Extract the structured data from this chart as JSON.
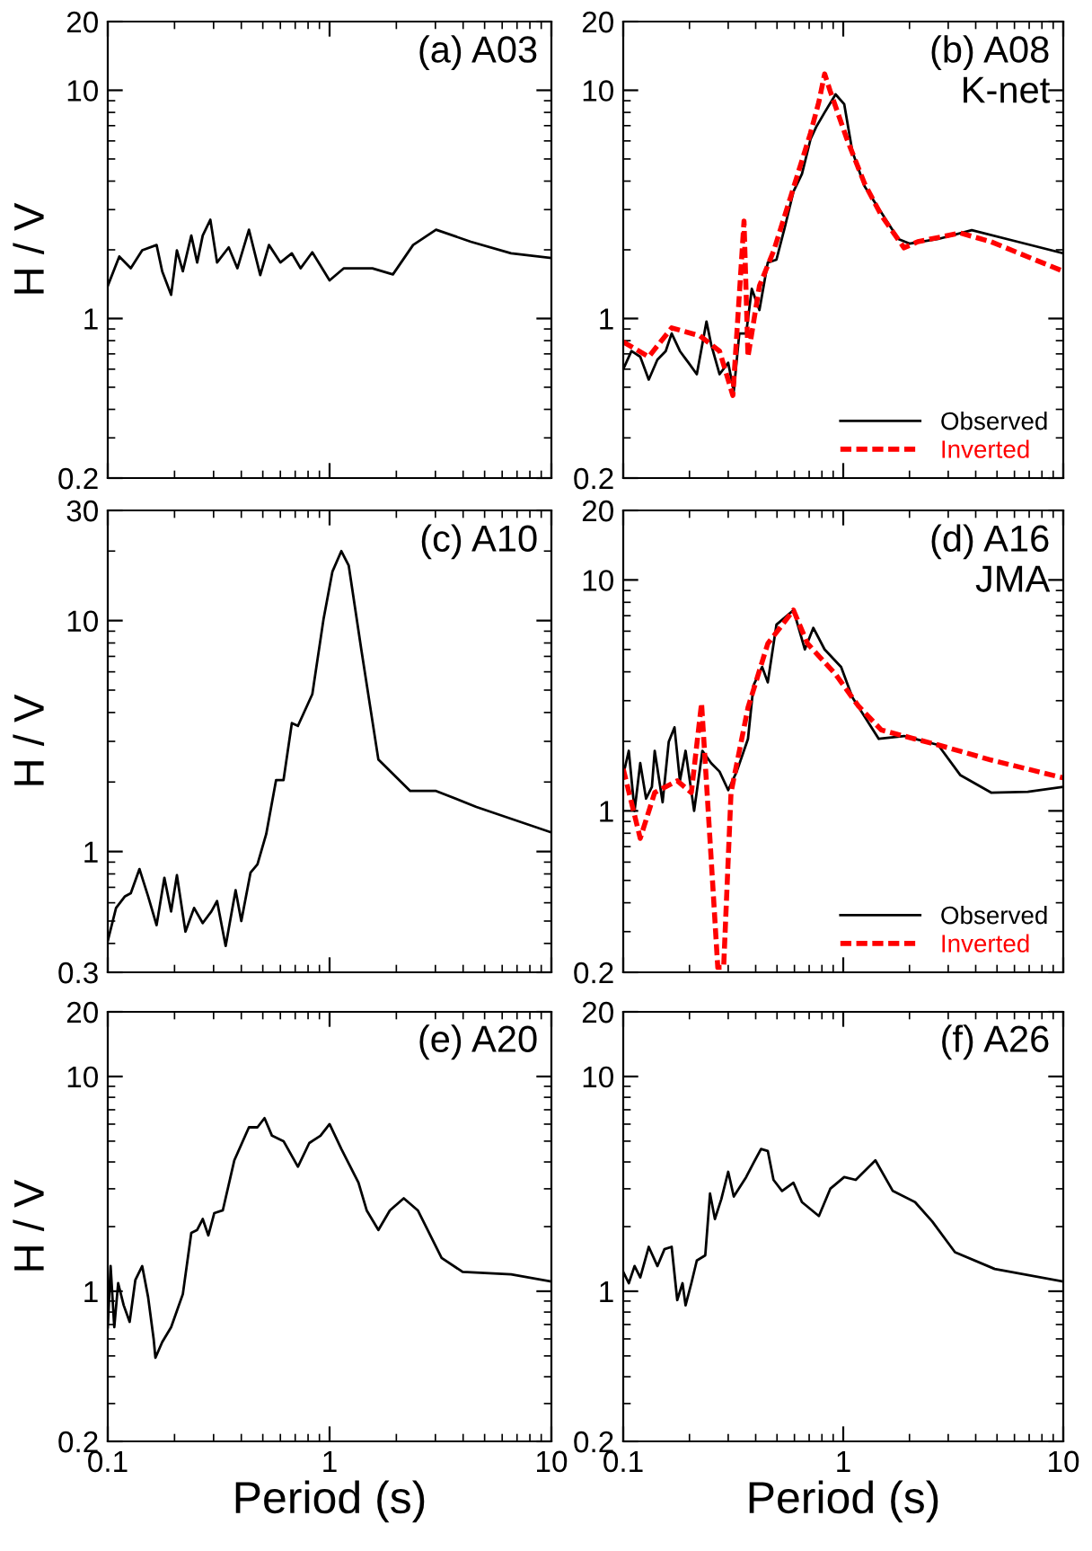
{
  "chart_data": [
    {
      "type": "line",
      "title": "(a) A03",
      "ylabel": "H / V",
      "log": "xy",
      "xlim": [
        0.1,
        10
      ],
      "ylim": [
        0.2,
        20
      ],
      "xticks": [
        0.1,
        1,
        10
      ],
      "yticks": [
        0.2,
        1,
        10,
        20
      ],
      "tick_labels": "y",
      "grid": false,
      "legend": false,
      "series": [
        {
          "color": "#000000",
          "line_style": "solid",
          "x": [
            0.1,
            0.1127,
            0.127,
            0.143,
            0.166,
            0.176,
            0.193,
            0.205,
            0.218,
            0.238,
            0.253,
            0.268,
            0.29,
            0.311,
            0.351,
            0.384,
            0.433,
            0.487,
            0.533,
            0.6,
            0.676,
            0.74,
            0.836,
            1.0,
            1.16,
            1.56,
            1.93,
            2.38,
            3.02,
            4.33,
            6.58,
            10
          ],
          "values": [
            1.39,
            1.87,
            1.66,
            1.99,
            2.1,
            1.61,
            1.27,
            1.99,
            1.61,
            2.31,
            1.76,
            2.31,
            2.71,
            1.76,
            2.05,
            1.66,
            2.45,
            1.55,
            2.1,
            1.76,
            1.93,
            1.66,
            1.95,
            1.47,
            1.66,
            1.66,
            1.56,
            2.1,
            2.45,
            2.17,
            1.93,
            1.84
          ]
        }
      ]
    },
    {
      "type": "line",
      "title": "(b) A08",
      "subtitle": "K-net",
      "log": "xy",
      "xlim": [
        0.1,
        10
      ],
      "ylim": [
        0.2,
        20
      ],
      "xticks": [
        0.1,
        1,
        10
      ],
      "yticks": [
        0.2,
        1,
        10,
        20
      ],
      "tick_labels": "y",
      "grid": false,
      "legend": "bottom right",
      "series": [
        {
          "name": "Observed",
          "color": "#000000",
          "line_style": "solid",
          "x": [
            0.1,
            0.109,
            0.1195,
            0.1306,
            0.143,
            0.156,
            0.166,
            0.181,
            0.198,
            0.216,
            0.239,
            0.251,
            0.274,
            0.3,
            0.318,
            0.337,
            0.362,
            0.384,
            0.416,
            0.454,
            0.497,
            0.543,
            0.594,
            0.649,
            0.71,
            0.753,
            0.823,
            0.923,
            1.01,
            1.1,
            1.25,
            1.4,
            1.78,
            2.0,
            2.7,
            3.84,
            6.2,
            10
          ],
          "values": [
            0.6,
            0.72,
            0.68,
            0.54,
            0.66,
            0.72,
            0.86,
            0.72,
            0.64,
            0.57,
            0.97,
            0.77,
            0.57,
            0.64,
            0.48,
            0.86,
            0.86,
            1.35,
            1.09,
            1.76,
            1.81,
            2.52,
            3.6,
            4.3,
            6.1,
            6.9,
            8.0,
            9.6,
            8.7,
            5.4,
            3.8,
            3.2,
            2.23,
            2.13,
            2.23,
            2.44,
            2.17,
            1.93
          ]
        },
        {
          "name": "Inverted",
          "color": "#ff0000",
          "line_style": "dashed",
          "x": [
            0.1,
            0.1306,
            0.166,
            0.223,
            0.274,
            0.315,
            0.354,
            0.369,
            0.416,
            0.483,
            0.576,
            0.71,
            0.775,
            0.823,
            0.873,
            1.04,
            1.25,
            1.49,
            1.89,
            2.18,
            3.4,
            4.7,
            10
          ],
          "values": [
            0.79,
            0.68,
            0.91,
            0.84,
            0.72,
            0.46,
            2.67,
            0.68,
            1.39,
            1.98,
            3.4,
            6.5,
            8.9,
            11.8,
            9.9,
            6.1,
            3.9,
            2.83,
            2.04,
            2.17,
            2.37,
            2.17,
            1.61
          ]
        }
      ]
    },
    {
      "type": "line",
      "title": "(c) A10",
      "ylabel": "H / V",
      "log": "xy",
      "xlim": [
        0.1,
        10
      ],
      "ylim": [
        0.3,
        30
      ],
      "xticks": [
        0.1,
        1,
        10
      ],
      "yticks": [
        0.3,
        1,
        10,
        30
      ],
      "tick_labels": "y",
      "grid": false,
      "legend": false,
      "series": [
        {
          "color": "#000000",
          "line_style": "solid",
          "x": [
            0.1,
            0.109,
            0.1196,
            0.127,
            0.139,
            0.152,
            0.166,
            0.18,
            0.193,
            0.205,
            0.224,
            0.245,
            0.268,
            0.293,
            0.311,
            0.34,
            0.377,
            0.4,
            0.44,
            0.473,
            0.518,
            0.574,
            0.62,
            0.676,
            0.72,
            0.836,
            0.94,
            1.03,
            1.13,
            1.22,
            1.39,
            1.66,
            2.31,
            3.02,
            4.59,
            10
          ],
          "values": [
            0.41,
            0.57,
            0.64,
            0.66,
            0.84,
            0.64,
            0.48,
            0.77,
            0.55,
            0.79,
            0.45,
            0.57,
            0.49,
            0.55,
            0.61,
            0.39,
            0.68,
            0.5,
            0.81,
            0.88,
            1.19,
            2.04,
            2.04,
            3.6,
            3.5,
            4.8,
            10.2,
            16.3,
            20.0,
            17.3,
            7.5,
            2.5,
            1.83,
            1.83,
            1.56,
            1.21
          ]
        }
      ]
    },
    {
      "type": "line",
      "title": "(d) A16",
      "subtitle": "JMA",
      "log": "xy",
      "xlim": [
        0.1,
        10
      ],
      "ylim": [
        0.2,
        20
      ],
      "xticks": [
        0.1,
        1,
        10
      ],
      "yticks": [
        0.2,
        1,
        10,
        20
      ],
      "tick_labels": "y",
      "grid": false,
      "legend": "bottom right",
      "series": [
        {
          "name": "Observed",
          "color": "#000000",
          "line_style": "solid",
          "x": [
            0.1,
            0.106,
            0.1126,
            0.1195,
            0.127,
            0.135,
            0.139,
            0.151,
            0.161,
            0.171,
            0.181,
            0.192,
            0.21,
            0.229,
            0.251,
            0.274,
            0.3,
            0.328,
            0.369,
            0.391,
            0.428,
            0.454,
            0.497,
            0.594,
            0.669,
            0.731,
            0.823,
            0.978,
            1.1,
            1.45,
            1.89,
            2.7,
            3.4,
            4.7,
            6.9,
            10
          ],
          "values": [
            1.43,
            1.82,
            1.0,
            1.61,
            1.13,
            1.27,
            1.82,
            1.09,
            1.99,
            2.3,
            1.35,
            1.82,
            1.0,
            1.82,
            1.61,
            1.48,
            1.23,
            1.48,
            2.05,
            3.5,
            4.2,
            3.6,
            6.4,
            7.4,
            5.0,
            6.2,
            5.0,
            4.2,
            3.1,
            2.05,
            2.11,
            1.93,
            1.43,
            1.2,
            1.21,
            1.27
          ]
        },
        {
          "name": "Inverted",
          "color": "#ff0000",
          "line_style": "dashed",
          "x": [
            0.1,
            0.1195,
            0.139,
            0.176,
            0.204,
            0.227,
            0.251,
            0.269,
            0.286,
            0.309,
            0.369,
            0.454,
            0.594,
            0.688,
            0.923,
            1.17,
            1.49,
            2.11,
            2.7,
            4.7,
            10
          ],
          "values": [
            1.52,
            0.76,
            1.2,
            1.35,
            1.2,
            2.93,
            0.62,
            0.21,
            0.21,
            1.2,
            2.8,
            5.3,
            7.4,
            5.3,
            3.9,
            2.85,
            2.24,
            2.05,
            1.93,
            1.66,
            1.39
          ]
        }
      ]
    },
    {
      "type": "line",
      "title": "(e) A20",
      "xlabel": "Period (s)",
      "ylabel": "H / V",
      "log": "xy",
      "xlim": [
        0.1,
        10
      ],
      "ylim": [
        0.2,
        20
      ],
      "xticks": [
        0.1,
        1,
        10
      ],
      "yticks": [
        0.2,
        1,
        10,
        20
      ],
      "grid": false,
      "legend": false,
      "series": [
        {
          "color": "#000000",
          "line_style": "solid",
          "x": [
            0.1,
            0.103,
            0.107,
            0.1114,
            0.118,
            0.1255,
            0.1332,
            0.143,
            0.152,
            0.161,
            0.164,
            0.176,
            0.193,
            0.205,
            0.218,
            0.238,
            0.253,
            0.268,
            0.284,
            0.302,
            0.33,
            0.372,
            0.433,
            0.473,
            0.509,
            0.55,
            0.62,
            0.72,
            0.81,
            0.91,
            1.0,
            1.13,
            1.35,
            1.47,
            1.66,
            1.87,
            2.16,
            2.5,
            3.2,
            3.98,
            6.58,
            10
          ],
          "values": [
            0.68,
            1.31,
            0.68,
            1.09,
            0.86,
            0.72,
            1.13,
            1.31,
            0.94,
            0.6,
            0.49,
            0.58,
            0.68,
            0.81,
            0.97,
            1.87,
            1.93,
            2.17,
            1.82,
            2.31,
            2.38,
            4.07,
            5.8,
            5.8,
            6.4,
            5.3,
            5.0,
            3.8,
            4.9,
            5.3,
            6.0,
            4.6,
            3.2,
            2.38,
            1.93,
            2.38,
            2.71,
            2.38,
            1.43,
            1.23,
            1.2,
            1.11
          ]
        }
      ]
    },
    {
      "type": "line",
      "title": "(f) A26",
      "xlabel": "Period (s)",
      "log": "xy",
      "xlim": [
        0.1,
        10
      ],
      "ylim": [
        0.2,
        20
      ],
      "xticks": [
        0.1,
        1,
        10
      ],
      "yticks": [
        0.2,
        1,
        10,
        20
      ],
      "grid": false,
      "legend": false,
      "series": [
        {
          "color": "#000000",
          "line_style": "solid",
          "x": [
            0.1,
            0.106,
            0.1126,
            0.1195,
            0.1306,
            0.143,
            0.154,
            0.166,
            0.176,
            0.186,
            0.192,
            0.204,
            0.216,
            0.236,
            0.248,
            0.261,
            0.279,
            0.3,
            0.318,
            0.362,
            0.391,
            0.423,
            0.454,
            0.482,
            0.527,
            0.594,
            0.649,
            0.775,
            0.873,
            1.01,
            1.14,
            1.4,
            1.68,
            2.12,
            2.54,
            3.22,
            4.88,
            10
          ],
          "values": [
            1.23,
            1.09,
            1.31,
            1.16,
            1.61,
            1.31,
            1.57,
            1.61,
            0.91,
            1.09,
            0.86,
            1.09,
            1.39,
            1.47,
            2.85,
            2.17,
            2.68,
            3.6,
            2.76,
            3.4,
            3.96,
            4.6,
            4.5,
            3.3,
            2.93,
            3.2,
            2.6,
            2.24,
            3.0,
            3.4,
            3.3,
            4.07,
            2.93,
            2.6,
            2.11,
            1.52,
            1.27,
            1.11
          ]
        }
      ]
    }
  ]
}
